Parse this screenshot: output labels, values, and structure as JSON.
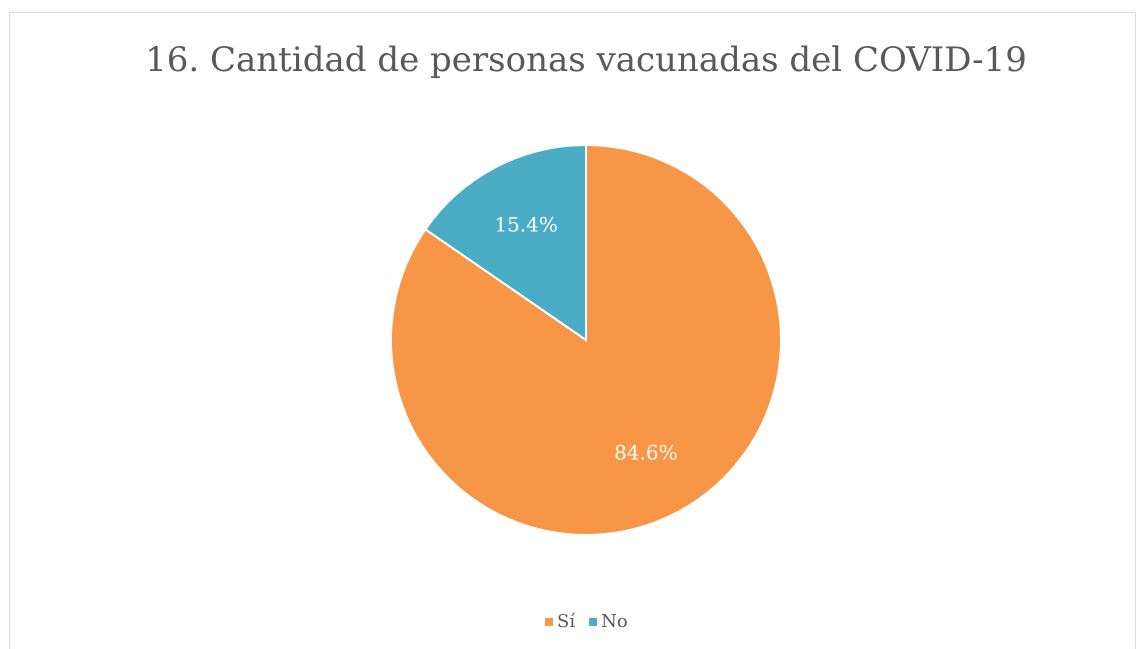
{
  "chart_data": {
    "type": "pie",
    "title": "16. Cantidad de personas vacunadas del COVID-19",
    "categories": [
      "Sí",
      "No"
    ],
    "values": [
      84.6,
      15.4
    ],
    "value_labels": [
      "84.6%",
      "15.4%"
    ],
    "colors": [
      "#F79646",
      "#4BACC6"
    ],
    "legend": "bottom"
  }
}
